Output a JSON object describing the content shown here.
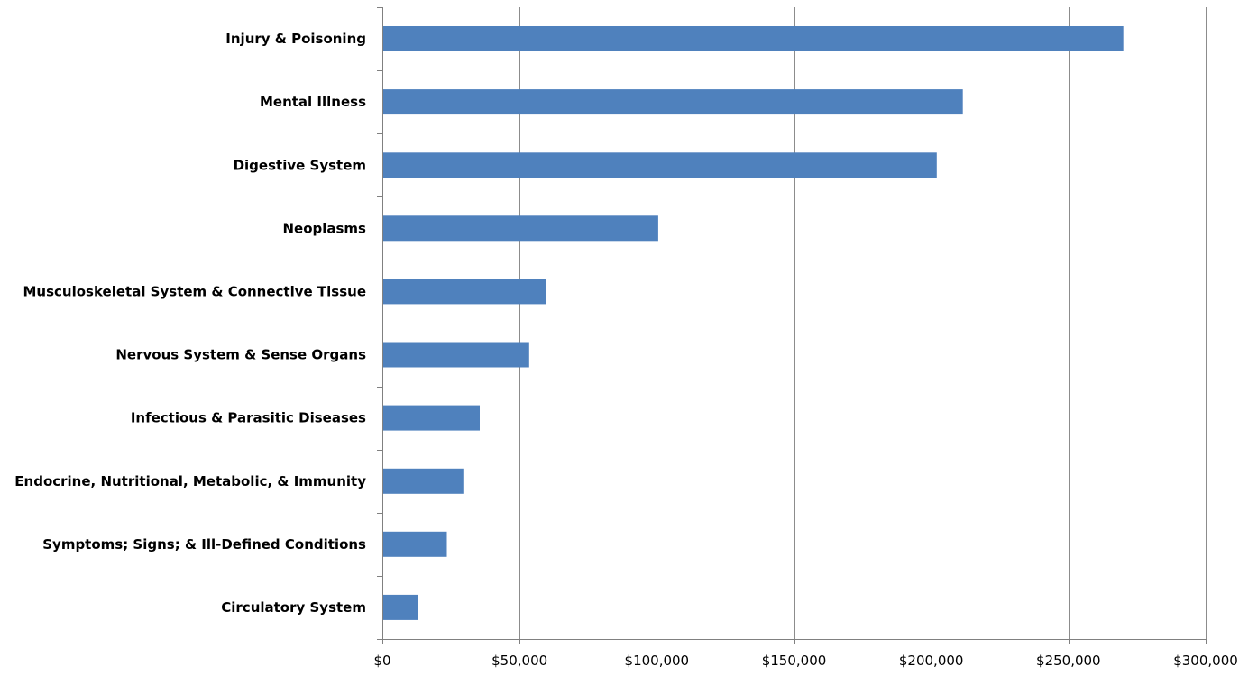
{
  "chart_data": {
    "type": "bar",
    "orientation": "horizontal",
    "categories": [
      "Injury & Poisoning",
      "Mental Illness",
      "Digestive System",
      "Neoplasms",
      "Musculoskeletal System & Connective Tissue",
      "Nervous System & Sense Organs",
      "Infectious & Parasitic Diseases",
      "Endocrine, Nutritional, Metabolic, & Immunity",
      "Symptoms; Signs; & Ill-Defined Conditions",
      "Circulatory System"
    ],
    "values": [
      270000,
      211500,
      202000,
      100500,
      59500,
      53500,
      35500,
      29500,
      23500,
      13000
    ],
    "xlim": [
      0,
      300000
    ],
    "x_ticks": [
      0,
      50000,
      100000,
      150000,
      200000,
      250000,
      300000
    ],
    "x_tick_labels": [
      "$0",
      "$50,000",
      "$100,000",
      "$150,000",
      "$200,000",
      "$250,000",
      "$300,000"
    ],
    "title": "",
    "xlabel": "",
    "ylabel": "",
    "grid": "vertical major gridlines",
    "legend": "none",
    "bar_color": "#4F81BD",
    "gridline_color": "#8C8C8C",
    "axis_color": "#808080"
  }
}
